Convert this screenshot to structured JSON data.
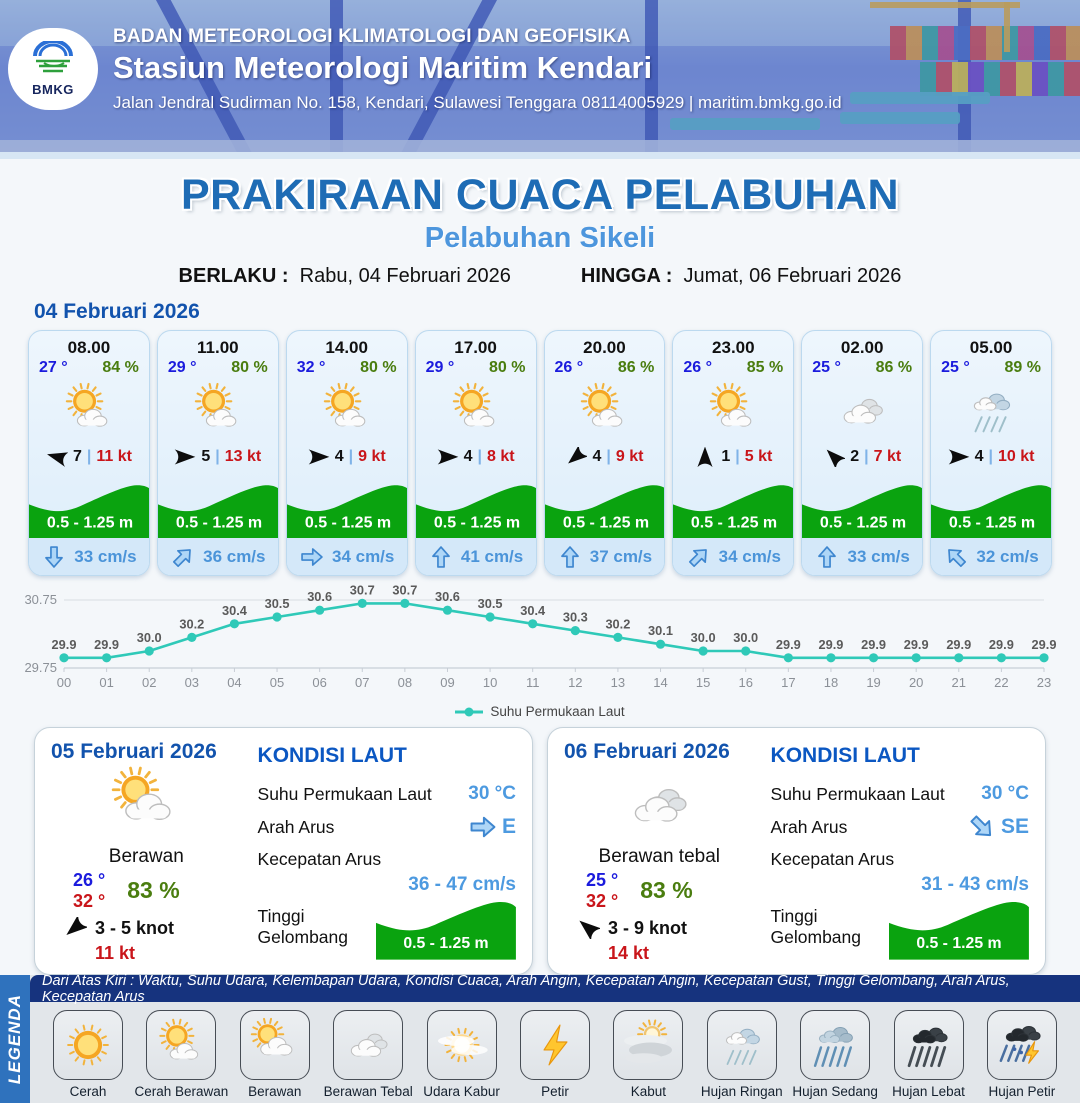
{
  "header": {
    "agency": "BADAN METEOROLOGI KLIMATOLOGI DAN GEOFISIKA",
    "station": "Stasiun Meteorologi Maritim Kendari",
    "address": "Jalan Jendral Sudirman No. 158, Kendari, Sulawesi Tenggara  08114005929 | maritim.bmkg.go.id",
    "logo_label": "BMKG"
  },
  "title": {
    "main": "PRAKIRAAN CUACA PELABUHAN",
    "subtitle": "Pelabuhan Sikeli",
    "berlaku_label": "BERLAKU :",
    "berlaku_value": "Rabu, 04 Februari 2026",
    "hingga_label": "HINGGA :",
    "hingga_value": "Jumat, 06 Februari 2026"
  },
  "hourly": {
    "date": "04 Februari 2026",
    "cards": [
      {
        "time": "08.00",
        "temp": "27 °",
        "humidity": "84 %",
        "icon": "cerah-berawan",
        "wind_dir_deg": 195,
        "wind": "7",
        "sep": "|",
        "gust": "11 kt",
        "wave": "0.5 - 1.25 m",
        "current_dir_deg": 90,
        "current": "33 cm/s"
      },
      {
        "time": "11.00",
        "temp": "29 °",
        "humidity": "80 %",
        "icon": "cerah-berawan",
        "wind_dir_deg": 0,
        "wind": "5",
        "sep": "|",
        "gust": "13 kt",
        "wave": "0.5 - 1.25 m",
        "current_dir_deg": 315,
        "current": "36 cm/s"
      },
      {
        "time": "14.00",
        "temp": "32 °",
        "humidity": "80 %",
        "icon": "cerah-berawan",
        "wind_dir_deg": 0,
        "wind": "4",
        "sep": "|",
        "gust": "9 kt",
        "wave": "0.5 - 1.25 m",
        "current_dir_deg": 0,
        "current": "34 cm/s"
      },
      {
        "time": "17.00",
        "temp": "29 °",
        "humidity": "80 %",
        "icon": "cerah-berawan",
        "wind_dir_deg": 0,
        "wind": "4",
        "sep": "|",
        "gust": "8 kt",
        "wave": "0.5 - 1.25 m",
        "current_dir_deg": 270,
        "current": "41 cm/s"
      },
      {
        "time": "20.00",
        "temp": "26 °",
        "humidity": "86 %",
        "icon": "cerah-berawan",
        "wind_dir_deg": 140,
        "wind": "4",
        "sep": "|",
        "gust": "9 kt",
        "wave": "0.5 - 1.25 m",
        "current_dir_deg": 270,
        "current": "37 cm/s"
      },
      {
        "time": "23.00",
        "temp": "26 °",
        "humidity": "85 %",
        "icon": "cerah-berawan",
        "wind_dir_deg": 270,
        "wind": "1",
        "sep": "|",
        "gust": "5 kt",
        "wave": "0.5 - 1.25 m",
        "current_dir_deg": 315,
        "current": "34 cm/s"
      },
      {
        "time": "02.00",
        "temp": "25 °",
        "humidity": "86 %",
        "icon": "berawan-tebal",
        "wind_dir_deg": 225,
        "wind": "2",
        "sep": "|",
        "gust": "7 kt",
        "wave": "0.5 - 1.25 m",
        "current_dir_deg": 270,
        "current": "33 cm/s"
      },
      {
        "time": "05.00",
        "temp": "25 °",
        "humidity": "89 %",
        "icon": "hujan-ringan",
        "wind_dir_deg": 0,
        "wind": "4",
        "sep": "|",
        "gust": "10 kt",
        "wave": "0.5 - 1.25 m",
        "current_dir_deg": 225,
        "current": "32 cm/s"
      }
    ]
  },
  "chart_data": {
    "type": "line",
    "title": "",
    "x_labels": [
      "00",
      "01",
      "02",
      "03",
      "04",
      "05",
      "06",
      "07",
      "08",
      "09",
      "10",
      "11",
      "12",
      "13",
      "14",
      "15",
      "16",
      "17",
      "18",
      "19",
      "20",
      "21",
      "22",
      "23"
    ],
    "series": [
      {
        "name": "Suhu Permukaan Laut",
        "values": [
          29.9,
          29.9,
          30.0,
          30.2,
          30.4,
          30.5,
          30.6,
          30.7,
          30.7,
          30.6,
          30.5,
          30.4,
          30.3,
          30.2,
          30.1,
          30.0,
          30.0,
          29.9,
          29.9,
          29.9,
          29.9,
          29.9,
          29.9,
          29.9
        ]
      }
    ],
    "yticks": [
      "30.75",
      "29.75"
    ],
    "ylim": [
      29.75,
      30.75
    ],
    "line_color": "#2fc9b8",
    "grid": "horizontal",
    "legend_position": "bottom-center",
    "data_labels": true
  },
  "sea_labels": {
    "heading": "KONDISI LAUT",
    "sst_label": "Suhu Permukaan Laut",
    "dir_label": "Arah Arus",
    "speed_label": "Kecepatan Arus",
    "wave_label": "Tinggi Gelombang"
  },
  "daily": [
    {
      "date": "05 Februari 2026",
      "icon": "berawan",
      "condition": "Berawan",
      "temp_min": "26 °",
      "temp_max": "32 °",
      "humidity": "83 %",
      "wind_dir_deg": 140,
      "wind": "3 - 5 knot",
      "gust": "11 kt",
      "sea": {
        "sst": "30 °C",
        "current_dir": "E",
        "current_dir_deg": 0,
        "current_speed": "36 - 47 cm/s",
        "wave": "0.5 - 1.25 m"
      }
    },
    {
      "date": "06 Februari 2026",
      "icon": "berawan-tebal",
      "condition": "Berawan tebal",
      "temp_min": "25 °",
      "temp_max": "32 °",
      "humidity": "83 %",
      "wind_dir_deg": 220,
      "wind": "3 - 9 knot",
      "gust": "14 kt",
      "sea": {
        "sst": "30 °C",
        "current_dir": "SE",
        "current_dir_deg": 45,
        "current_speed": "31 - 43 cm/s",
        "wave": "0.5 - 1.25 m"
      }
    }
  ],
  "legend": {
    "side_label": "LEGENDA",
    "bar_text": "Dari Atas Kiri : Waktu, Suhu Udara, Kelembapan Udara, Kondisi Cuaca, Arah Angin, Kecepatan Angin, Kecepatan Gust, Tinggi Gelombang, Arah Arus, Kecepatan Arus",
    "items": [
      {
        "label": "Cerah",
        "icon": "cerah"
      },
      {
        "label": "Cerah Berawan",
        "icon": "cerah-berawan"
      },
      {
        "label": "Berawan",
        "icon": "berawan"
      },
      {
        "label": "Berawan Tebal",
        "icon": "berawan-tebal"
      },
      {
        "label": "Udara Kabur",
        "icon": "udara-kabur"
      },
      {
        "label": "Petir",
        "icon": "petir"
      },
      {
        "label": "Kabut",
        "icon": "kabut"
      },
      {
        "label": "Hujan Ringan",
        "icon": "hujan-ringan"
      },
      {
        "label": "Hujan Sedang",
        "icon": "hujan-sedang"
      },
      {
        "label": "Hujan Lebat",
        "icon": "hujan-lebat"
      },
      {
        "label": "Hujan Petir",
        "icon": "hujan-petir"
      }
    ]
  },
  "colors": {
    "title_blue": "#1e6cb5",
    "subtitle_blue": "#4d96dd",
    "date_blue": "#1253ad",
    "temp_blue": "#1b1bdd",
    "temp_red": "#c9151a",
    "humidity_green": "#4a7d0f",
    "gust_red": "#c9151a",
    "wave_green": "#0aa30f",
    "current_blue": "#4b94d9",
    "chart_teal": "#2fc9b8",
    "legend_bar_navy": "#16337e",
    "legend_side_blue": "#2f72bd"
  }
}
